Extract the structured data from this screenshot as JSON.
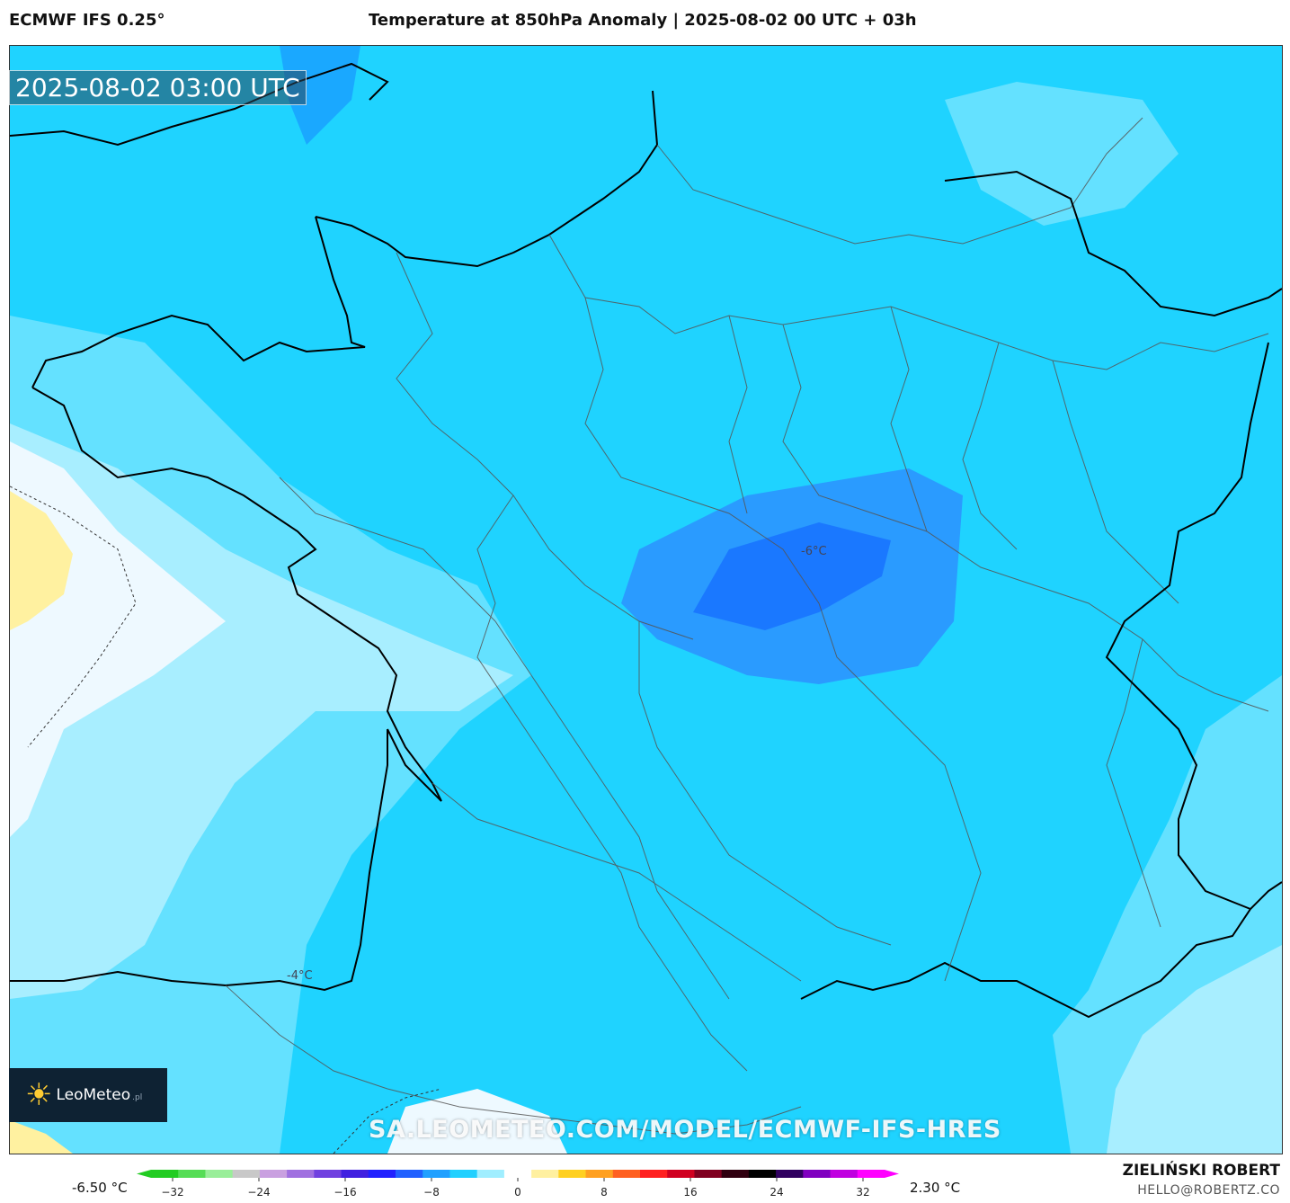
{
  "header": {
    "model": "ECMWF IFS 0.25°",
    "title": "Temperature at 850hPa Anomaly | 2025-08-02 00 UTC + 03h"
  },
  "map": {
    "valid_time": "2025-08-02 03:00 UTC",
    "labels": [
      {
        "text": "-6°C"
      },
      {
        "text": "-4°C"
      }
    ]
  },
  "branding": {
    "logo_name": "LeoMeteo",
    "logo_tld": ".pl",
    "watermark": "SA.LEOMETEO.COM/MODEL/ECMWF-IFS-HRES"
  },
  "colorbar": {
    "min_label": "-6.50 °C",
    "max_label": "2.30 °C",
    "ticks": [
      "−32",
      "−24",
      "−16",
      "−8",
      "0",
      "8",
      "16",
      "24",
      "32"
    ],
    "colors": [
      "#22cc22",
      "#55dd55",
      "#99ee99",
      "#c8c8c8",
      "#c9a0e0",
      "#a070e0",
      "#7040e0",
      "#4020e0",
      "#2020ff",
      "#2060ff",
      "#20a0ff",
      "#20d0ff",
      "#a0eeff",
      "#ffffff",
      "#fff0a0",
      "#ffd020",
      "#ffa020",
      "#ff6020",
      "#ff2020",
      "#d00020",
      "#800020",
      "#300010",
      "#000000",
      "#300060",
      "#8000c0",
      "#c000e0",
      "#ff00ff"
    ]
  },
  "footer": {
    "author": "ZIELIŃSKI ROBERT",
    "email": "HELLO@ROBERTZ.CO"
  }
}
